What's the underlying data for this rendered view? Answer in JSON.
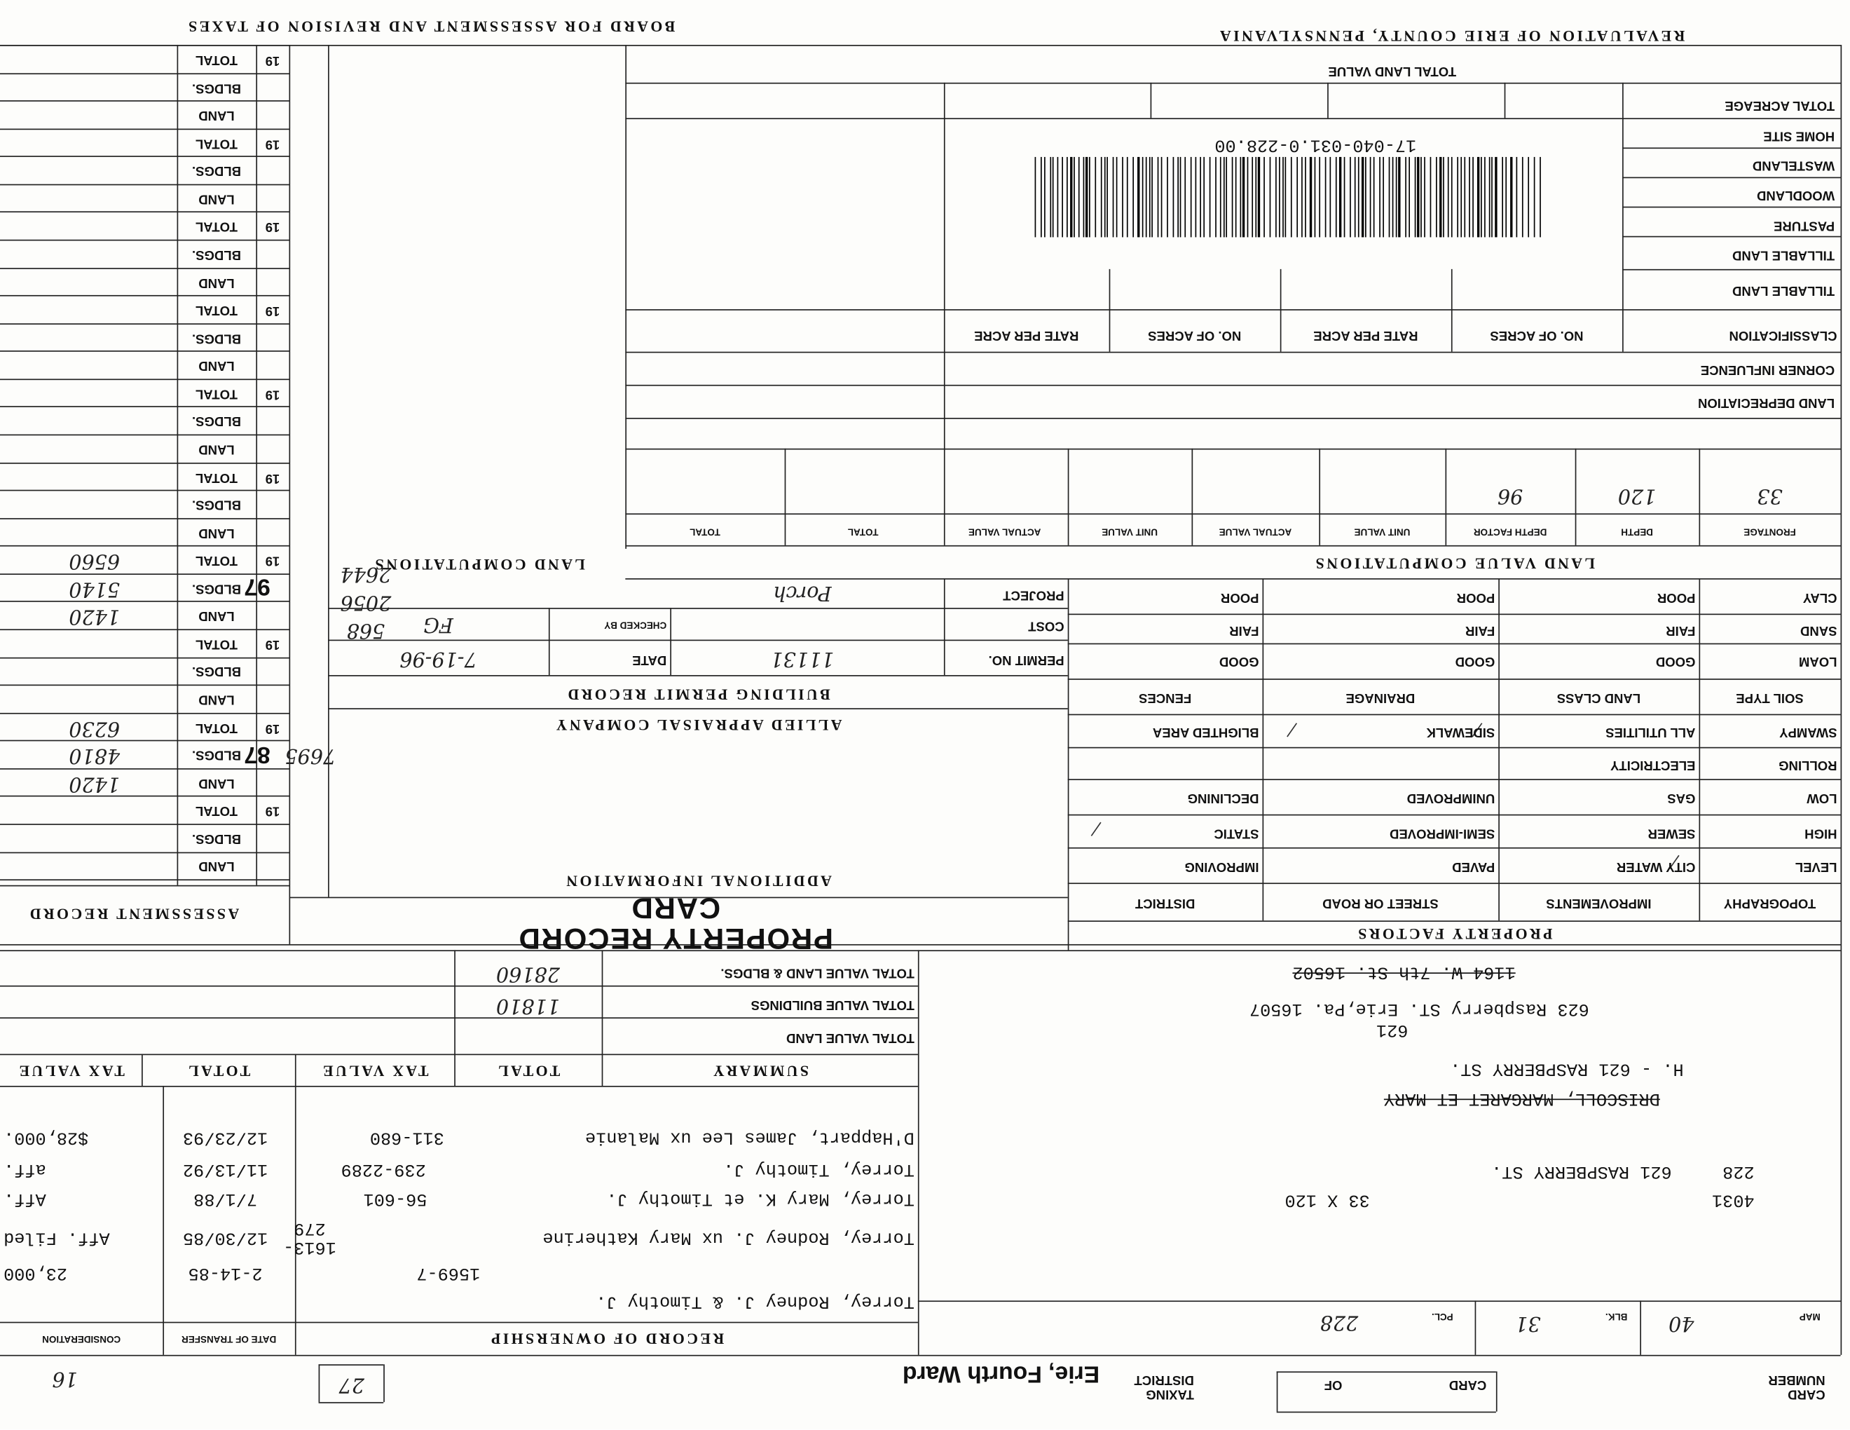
{
  "header": {
    "county": "REVALUATION OF ERIE COUNTY, PENNSYLVANIA",
    "board": "BOARD FOR ASSESSMENT AND REVISION OF TAXES",
    "card_title": "PROPERTY RECORD CARD"
  },
  "land": {
    "total_land_value": "TOTAL LAND VALUE",
    "rows": [
      "TOTAL ACREAGE",
      "HOME SITE",
      "WASTELAND",
      "WOODLAND",
      "PASTURE",
      "TILLABLE LAND",
      "TILLABLE LAND"
    ],
    "classification": [
      "CLASSIFICATION",
      "NO. OF ACRES",
      "RATE PER ACRE",
      "NO. OF ACRES",
      "RATE PER ACRE"
    ],
    "corner_influence": "CORNER INFLUENCE",
    "land_depreciation": "LAND DEPRECIATION",
    "barcode_number": "17-040-031.0-228.00"
  },
  "land_value": {
    "title": "LAND VALUE COMPUTATIONS",
    "headers": [
      "FRONTAGE",
      "DEPTH",
      "DEPTH FACTOR",
      "UNIT VALUE",
      "ACTUAL VALUE",
      "UNIT VALUE",
      "ACTUAL VALUE",
      "TOTAL",
      "TOTAL"
    ],
    "values": [
      "33",
      "120",
      "96"
    ]
  },
  "property_factors": {
    "title": "PROPERTY FACTORS",
    "headers": [
      "TOPOGRAPHY",
      "IMPROVEMENTS",
      "STREET OR ROAD",
      "DISTRICT"
    ],
    "rows": [
      [
        "LEVEL",
        "CITY WATER",
        "PAVED",
        "IMPROVING"
      ],
      [
        "HIGH",
        "SEWER",
        "SEMI-IMPROVED",
        "STATIC"
      ],
      [
        "LOW",
        "GAS",
        "UNIMPROVED",
        "DECLINING"
      ],
      [
        "ROLLING",
        "ELECTRICITY"
      ],
      [
        "SWAMPY",
        "ALL UTILITIES",
        "SIDEWALK",
        "BLIGHTED AREA"
      ]
    ],
    "soil_headers": [
      "SOIL TYPE",
      "LAND CLASS",
      "DRAINAGE",
      "FENCES"
    ],
    "soil_rows": [
      [
        "LOAM",
        "GOOD",
        "GOOD",
        "GOOD"
      ],
      [
        "SAND",
        "FAIR",
        "FAIR",
        "FAIR"
      ],
      [
        "CLAY",
        "POOR",
        "POOR",
        "POOR"
      ]
    ]
  },
  "building_permit": {
    "title": "BUILDING PERMIT RECORD",
    "project_label": "PROJECT",
    "project": "Porch",
    "cost_label": "COST",
    "permit_label": "PERMIT NO.",
    "permit": "11131",
    "date_label": "DATE",
    "date": "7-19-96",
    "checked_label": "CHECKED BY",
    "checked": "FG"
  },
  "additional": {
    "title": "ADDITIONAL INFORMATION",
    "company": "ALLIED APPRAISAL COMPANY",
    "land_computations": "LAND COMPUTATIONS",
    "notes": [
      "2644",
      "2056",
      "568",
      "7695"
    ]
  },
  "assessment": {
    "title": "ASSESSMENT RECORD",
    "blocks": [
      {
        "year": "19",
        "rows": [
          "TOTAL",
          "BLDGS.",
          "LAND"
        ]
      },
      {
        "year": "19",
        "rows": [
          "TOTAL",
          "BLDGS.",
          "LAND"
        ]
      },
      {
        "year": "19",
        "rows": [
          "TOTAL",
          "BLDGS.",
          "LAND"
        ]
      },
      {
        "year": "19",
        "rows": [
          "TOTAL",
          "BLDGS.",
          "LAND"
        ]
      },
      {
        "year": "19",
        "rows": [
          "TOTAL",
          "BLDGS.",
          "LAND"
        ]
      },
      {
        "year": "19",
        "rows": [
          "TOTAL",
          "BLDGS.",
          "LAND"
        ]
      },
      {
        "year": "19",
        "rows": [
          "TOTAL",
          "BLDGS.",
          "LAND"
        ],
        "year_written": "97",
        "values": [
          "6560",
          "5140",
          "1420"
        ]
      },
      {
        "year": "19",
        "rows": [
          "TOTAL",
          "BLDGS.",
          "LAND"
        ]
      },
      {
        "year": "19",
        "rows": [
          "TOTAL",
          "BLDGS.",
          "LAND"
        ],
        "year_written": "87",
        "values": [
          "6230",
          "4810",
          "1420"
        ]
      },
      {
        "year": "19",
        "rows": [
          "TOTAL",
          "BLDGS.",
          "LAND"
        ]
      }
    ]
  },
  "summary": {
    "headers": [
      "SUMMARY",
      "TOTAL",
      "TAX VALUE",
      "TOTAL",
      "TAX VALUE"
    ],
    "rows": [
      {
        "label": "TOTAL VALUE LAND & BLDGS.",
        "total": "28160"
      },
      {
        "label": "TOTAL VALUE BUILDINGS",
        "total": "11810"
      },
      {
        "label": "TOTAL VALUE LAND"
      }
    ]
  },
  "ownership": {
    "title": "RECORD OF OWNERSHIP",
    "date_header": "DATE OF TRANSFER",
    "consideration_header": "CONSIDERATION",
    "rows": [
      {
        "name": "Torrey, Rodney J. & Timothy J.",
        "deed": "1569-7",
        "date": "2-14-85",
        "consideration": "23,000"
      },
      {
        "name": "Torrey, Rodney J. ux Mary Katherine",
        "deed": "1613-279",
        "date": "12/30/85",
        "consideration": "Aff. Filed"
      },
      {
        "name": "Torrey, Mary K. et Timothy J.",
        "deed": "56-601",
        "date": "7/1/88",
        "consideration": "Aff."
      },
      {
        "name": "Torrey, Timothy J.",
        "deed": "239-2289",
        "date": "11/13/92",
        "consideration": "aff."
      },
      {
        "name": "D'Happart, James Lee ux Malanie",
        "deed": "311-680",
        "date": "12/23/93",
        "consideration": "$28,000."
      }
    ]
  },
  "parcel": {
    "account": "4031",
    "pcl_number": "228",
    "dimensions": "33 X 120",
    "street": "621 RASPBERRY ST.",
    "prior_owner": "DRISCOLL, MARGARET ET MARY",
    "house": "H. - 621 RASPBERRY ST.",
    "house_number_note": "621",
    "mailing": "623 Raspberry ST. Erie,Pa. 16507",
    "old_mailing": "1164 W. 7th St. 16502",
    "map_label": "MAP",
    "map": "40",
    "blk_label": "BLK.",
    "blk": "31",
    "pcl_label": "PCL.",
    "pcl": "228"
  },
  "footer": {
    "card_number_label": "CARD NUMBER",
    "card_label": "CARD",
    "of_label": "OF",
    "taxing_district_label": "TAXING DISTRICT",
    "taxing_district": "Erie, Fourth Ward",
    "district_code": "27",
    "page_note": "16"
  }
}
